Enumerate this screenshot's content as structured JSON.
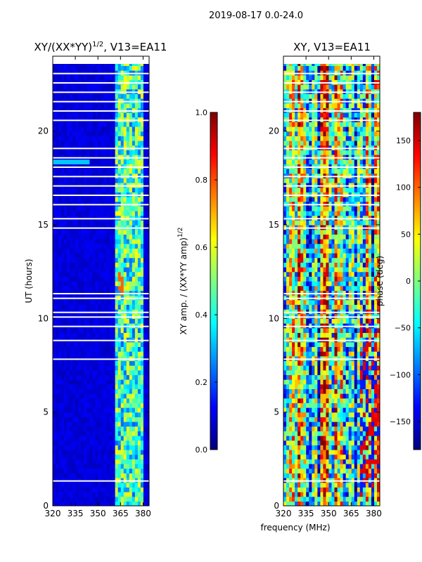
{
  "figure_title": "2019-08-17 0.0-24.0",
  "shared_xlabel": "frequency (MHz)",
  "chart_data": [
    {
      "type": "heatmap",
      "title_prefix": "XY/(XX*YY)",
      "title_sup": "1/2",
      "title_suffix": ", V13=EA11",
      "ylabel": "UT (hours)",
      "xlim": [
        320,
        384
      ],
      "ylim": [
        0,
        24
      ],
      "xticks": [
        "320",
        "335",
        "350",
        "365",
        "380"
      ],
      "yticks": [
        "0",
        "5",
        "10",
        "15",
        "20"
      ],
      "colorbar": {
        "label": "XY amp. / (XX*YY amp)",
        "label_sup": "1/2",
        "range": [
          0.0,
          1.0
        ],
        "ticks": [
          "0.0",
          "0.2",
          "0.4",
          "0.6",
          "0.8",
          "1.0"
        ],
        "colormap": "jet"
      }
    },
    {
      "type": "heatmap",
      "title": "XY, V13=EA11",
      "xlim": [
        320,
        384
      ],
      "ylim": [
        0,
        24
      ],
      "xticks": [
        "320",
        "335",
        "350",
        "365",
        "380"
      ],
      "yticks": [
        "0",
        "5",
        "10",
        "15",
        "20"
      ],
      "colorbar": {
        "label": "phase (deg)",
        "range": [
          -180,
          180
        ],
        "ticks": [
          "−150",
          "−100",
          "−50",
          "0",
          "50",
          "100",
          "150"
        ],
        "colormap": "jet"
      }
    }
  ]
}
